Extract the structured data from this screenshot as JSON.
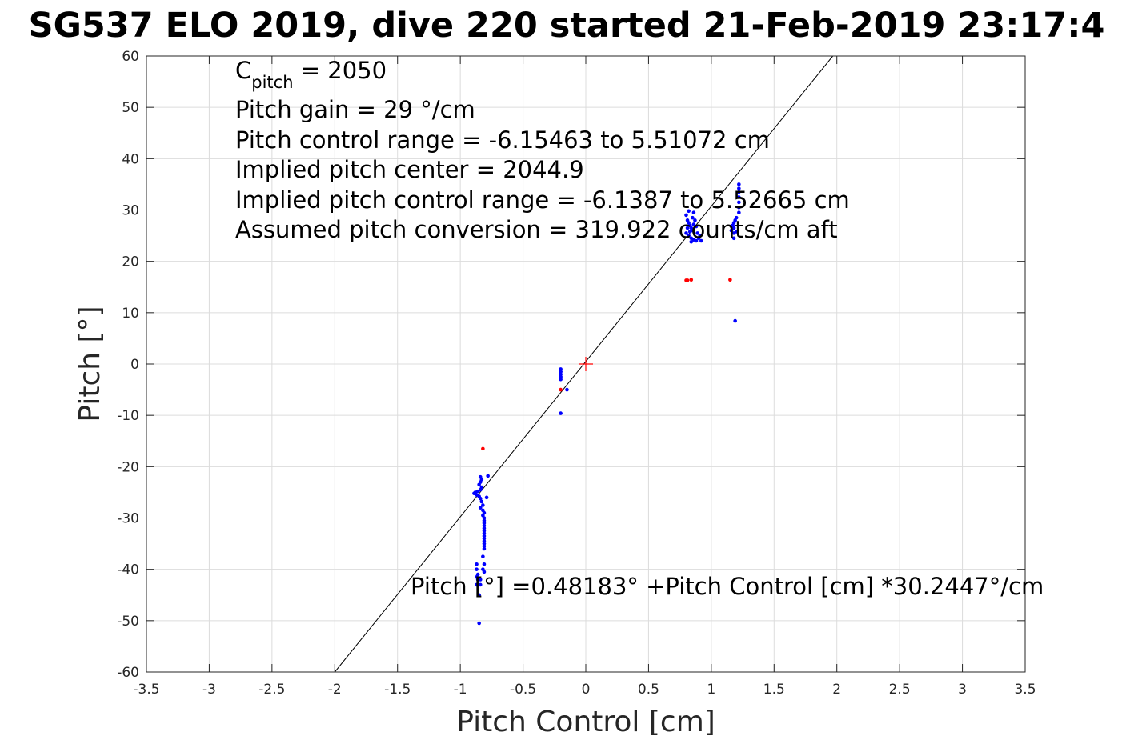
{
  "chart_data": {
    "type": "scatter",
    "title": "SG537 ELO 2019, dive 220 started 21-Feb-2019 23:17:4",
    "xlabel": "Pitch Control [cm]",
    "ylabel": "Pitch [°]",
    "xlim": [
      -3.5,
      3.5
    ],
    "ylim": [
      -60,
      60
    ],
    "xticks": [
      -3.5,
      -3,
      -2.5,
      -2,
      -1.5,
      -1,
      -0.5,
      0,
      0.5,
      1,
      1.5,
      2,
      2.5,
      3,
      3.5
    ],
    "yticks": [
      -60,
      -50,
      -40,
      -30,
      -20,
      -10,
      0,
      10,
      20,
      30,
      40,
      50,
      60
    ],
    "grid": true,
    "fit_line": {
      "intercept": 0.48183,
      "slope": 30.2447
    },
    "center_marker": {
      "x": 0,
      "y": 0,
      "color": "#ff0000"
    },
    "annotations": {
      "cpitch_main": "C",
      "cpitch_sub": "pitch",
      "cpitch_value": " = 2050",
      "lines": [
        "Pitch gain = 29 °/cm",
        "Pitch control range = -6.15463 to 5.51072 cm",
        "Implied pitch center = 2044.9",
        "Implied pitch control range = -6.1387 to 5.52665 cm",
        "Assumed pitch conversion = 319.922 counts/cm aft"
      ],
      "fit_text": "Pitch [°] =0.48183° +Pitch Control [cm] *30.2447°/cm"
    },
    "series": [
      {
        "color": "#0000ff",
        "points": [
          [
            -0.84,
            -22.0
          ],
          [
            -0.83,
            -22.5
          ],
          [
            -0.84,
            -23.0
          ],
          [
            -0.85,
            -23.5
          ],
          [
            -0.83,
            -24.0
          ],
          [
            -0.84,
            -24.5
          ],
          [
            -0.86,
            -24.8
          ],
          [
            -0.88,
            -25.0
          ],
          [
            -0.89,
            -25.2
          ],
          [
            -0.87,
            -25.5
          ],
          [
            -0.85,
            -25.8
          ],
          [
            -0.84,
            -26.2
          ],
          [
            -0.83,
            -26.8
          ],
          [
            -0.82,
            -27.5
          ],
          [
            -0.84,
            -28.0
          ],
          [
            -0.82,
            -28.5
          ],
          [
            -0.81,
            -29.0
          ],
          [
            -0.82,
            -29.5
          ],
          [
            -0.81,
            -30.0
          ],
          [
            -0.81,
            -30.5
          ],
          [
            -0.81,
            -31.0
          ],
          [
            -0.81,
            -31.5
          ],
          [
            -0.81,
            -32.0
          ],
          [
            -0.81,
            -32.5
          ],
          [
            -0.81,
            -33.0
          ],
          [
            -0.81,
            -33.5
          ],
          [
            -0.81,
            -34.0
          ],
          [
            -0.81,
            -34.5
          ],
          [
            -0.81,
            -35.0
          ],
          [
            -0.81,
            -35.5
          ],
          [
            -0.81,
            -36.0
          ],
          [
            -0.82,
            -37.5
          ],
          [
            -0.81,
            -39.0
          ],
          [
            -0.82,
            -40.0
          ],
          [
            -0.81,
            -40.5
          ],
          [
            -0.87,
            -39.0
          ],
          [
            -0.87,
            -40.0
          ],
          [
            -0.86,
            -41.0
          ],
          [
            -0.87,
            -41.5
          ],
          [
            -0.86,
            -42.0
          ],
          [
            -0.87,
            -43.0
          ],
          [
            -0.84,
            -42.0
          ],
          [
            -0.84,
            -43.0
          ],
          [
            -0.85,
            -45.0
          ],
          [
            -0.85,
            -50.5
          ],
          [
            -0.78,
            -21.8
          ],
          [
            -0.79,
            -26.0
          ],
          [
            -0.2,
            -1.0
          ],
          [
            -0.2,
            -1.5
          ],
          [
            -0.2,
            -2.0
          ],
          [
            -0.2,
            -2.5
          ],
          [
            -0.2,
            -3.0
          ],
          [
            -0.15,
            -5.0
          ],
          [
            -0.2,
            -9.6
          ],
          [
            0.8,
            29.0
          ],
          [
            0.81,
            28.0
          ],
          [
            0.82,
            27.5
          ],
          [
            0.83,
            27.0
          ],
          [
            0.84,
            26.5
          ],
          [
            0.85,
            26.0
          ],
          [
            0.8,
            25.5
          ],
          [
            0.82,
            25.0
          ],
          [
            0.84,
            24.5
          ],
          [
            0.86,
            24.2
          ],
          [
            0.88,
            24.0
          ],
          [
            0.9,
            24.5
          ],
          [
            0.92,
            24.0
          ],
          [
            0.85,
            28.5
          ],
          [
            0.87,
            28.0
          ],
          [
            0.84,
            23.8
          ],
          [
            0.86,
            29.5
          ],
          [
            0.82,
            29.8
          ],
          [
            0.81,
            26.5
          ],
          [
            0.83,
            25.8
          ],
          [
            0.86,
            27.2
          ],
          [
            0.88,
            26.8
          ],
          [
            0.89,
            25.5
          ],
          [
            0.91,
            25.0
          ],
          [
            1.18,
            24.5
          ],
          [
            1.18,
            25.5
          ],
          [
            1.18,
            26.5
          ],
          [
            1.18,
            27.5
          ],
          [
            1.19,
            28.0
          ],
          [
            1.2,
            28.5
          ],
          [
            1.17,
            27.0
          ],
          [
            1.16,
            26.0
          ],
          [
            1.2,
            25.8
          ],
          [
            1.22,
            29.5
          ],
          [
            1.22,
            30.5
          ],
          [
            1.22,
            31.5
          ],
          [
            1.22,
            32.5
          ],
          [
            1.22,
            33.5
          ],
          [
            1.22,
            34.2
          ],
          [
            1.22,
            35.0
          ],
          [
            1.19,
            8.4
          ]
        ]
      },
      {
        "color": "#ff0000",
        "points": [
          [
            -0.82,
            -16.5
          ],
          [
            0.8,
            16.3
          ],
          [
            0.81,
            16.3
          ],
          [
            0.84,
            16.4
          ],
          [
            1.15,
            16.4
          ],
          [
            -0.2,
            -5.0
          ]
        ]
      }
    ]
  }
}
